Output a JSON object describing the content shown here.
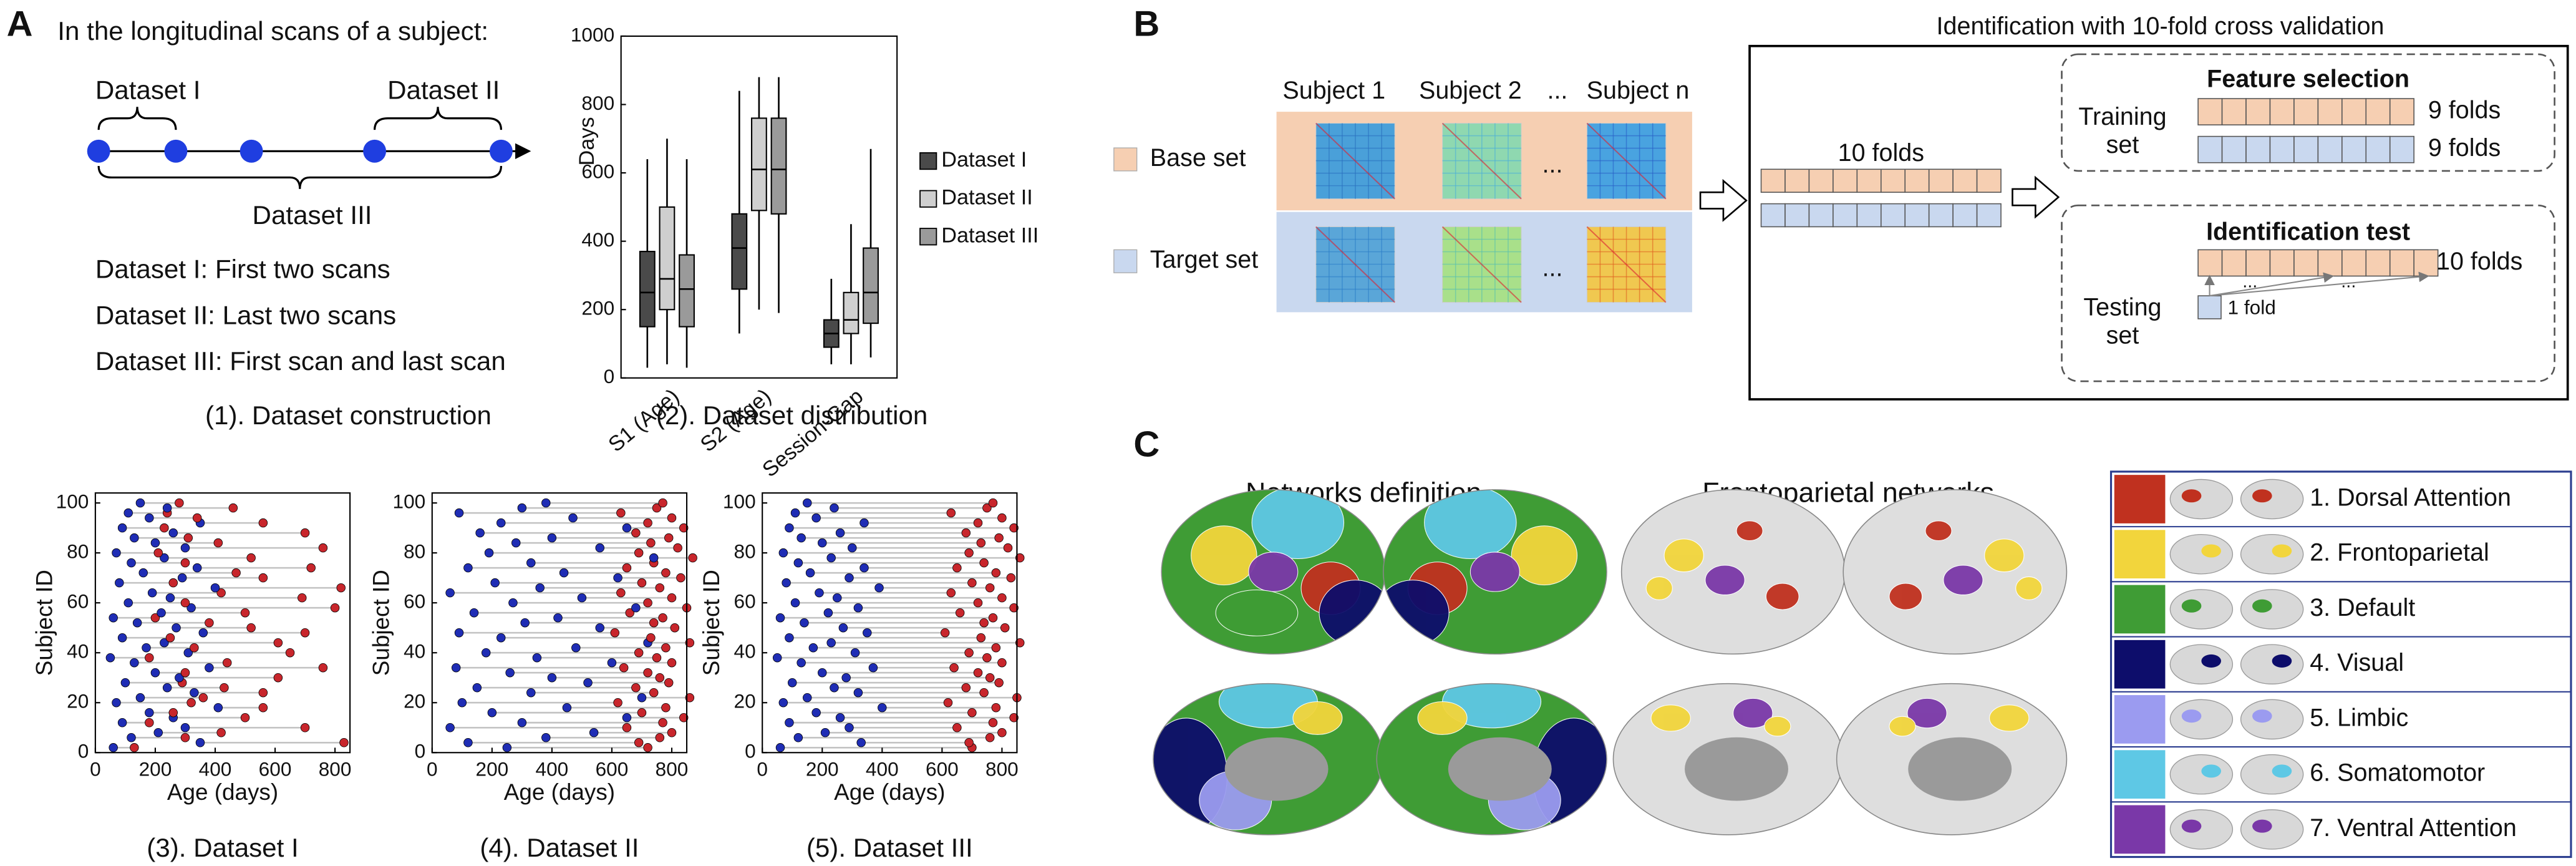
{
  "panel_labels": [
    "A",
    "B",
    "C"
  ],
  "panel_a": {
    "heading": "In the longitudinal scans of a subject:",
    "dataset_labels": [
      "Dataset I",
      "Dataset II",
      "Dataset III"
    ],
    "descriptions": [
      "Dataset I: First two scans",
      "Dataset II: Last two scans",
      "Dataset III: First scan and last scan"
    ],
    "caption": "(1). Dataset construction"
  },
  "chart_data": [
    {
      "type": "box",
      "title": "(2). Dataset distribution",
      "ylabel": "Days",
      "categories": [
        "S1 (Age)",
        "S2 (Age)",
        "Session-Gap"
      ],
      "series": [
        {
          "name": "Dataset I",
          "color": "#4a4a4a",
          "values": [
            [
              30,
              150,
              250,
              370,
              640
            ],
            [
              130,
              260,
              380,
              480,
              840
            ],
            [
              40,
              90,
              130,
              170,
              290
            ]
          ]
        },
        {
          "name": "Dataset II",
          "color": "#cfcfcf",
          "values": [
            [
              40,
              200,
              290,
              500,
              700
            ],
            [
              200,
              490,
              610,
              760,
              880
            ],
            [
              40,
              130,
              170,
              250,
              450
            ]
          ]
        },
        {
          "name": "Dataset III",
          "color": "#9a9a9a",
          "values": [
            [
              30,
              150,
              260,
              360,
              640
            ],
            [
              190,
              480,
              610,
              760,
              880
            ],
            [
              60,
              160,
              250,
              380,
              670
            ]
          ]
        }
      ],
      "ylim": [
        0,
        1000
      ],
      "yticks": [
        0,
        200,
        400,
        600,
        800,
        1000
      ],
      "legend": "right"
    },
    {
      "type": "dumbbell",
      "title": "(3). Dataset I",
      "xlabel": "Age (days)",
      "ylabel": "Subject ID",
      "start_color": "#1f2db5",
      "end_color": "#c8262c",
      "line_color": "#c4c4c4",
      "y": [
        2,
        4,
        6,
        8,
        10,
        12,
        14,
        16,
        18,
        20,
        22,
        24,
        26,
        28,
        30,
        32,
        34,
        36,
        38,
        40,
        42,
        44,
        46,
        48,
        50,
        52,
        54,
        56,
        58,
        60,
        62,
        64,
        66,
        68,
        70,
        72,
        74,
        76,
        78,
        80,
        82,
        84,
        86,
        88,
        90,
        92,
        94,
        96,
        98,
        100
      ],
      "x_start": [
        60,
        350,
        120,
        210,
        300,
        90,
        260,
        180,
        410,
        70,
        150,
        330,
        240,
        100,
        280,
        200,
        380,
        130,
        50,
        310,
        170,
        230,
        90,
        360,
        270,
        140,
        60,
        220,
        320,
        110,
        250,
        190,
        400,
        80,
        290,
        160,
        340,
        120,
        230,
        70,
        300,
        200,
        130,
        260,
        90,
        350,
        180,
        110,
        240,
        150
      ],
      "x_end": [
        130,
        830,
        300,
        420,
        700,
        180,
        500,
        260,
        560,
        320,
        360,
        560,
        430,
        290,
        610,
        300,
        760,
        440,
        180,
        650,
        330,
        610,
        250,
        700,
        520,
        380,
        200,
        500,
        800,
        300,
        690,
        420,
        820,
        260,
        560,
        470,
        720,
        300,
        520,
        210,
        760,
        410,
        310,
        700,
        230,
        560,
        340,
        240,
        460,
        280
      ],
      "xlim": [
        0,
        850
      ],
      "ylim": [
        0,
        104
      ],
      "xticks": [
        0,
        200,
        400,
        600,
        800
      ],
      "yticks": [
        0,
        20,
        40,
        60,
        80,
        100
      ]
    },
    {
      "type": "dumbbell",
      "title": "(4). Dataset II",
      "xlabel": "Age (days)",
      "ylabel": "Subject ID",
      "start_color": "#1f2db5",
      "end_color": "#c8262c",
      "line_color": "#c4c4c4",
      "y": [
        2,
        4,
        6,
        8,
        10,
        12,
        14,
        16,
        18,
        20,
        22,
        24,
        26,
        28,
        30,
        32,
        34,
        36,
        38,
        40,
        42,
        44,
        46,
        48,
        50,
        52,
        54,
        56,
        58,
        60,
        62,
        64,
        66,
        68,
        70,
        72,
        74,
        76,
        78,
        80,
        82,
        84,
        86,
        88,
        90,
        92,
        94,
        96,
        98,
        100
      ],
      "x_start": [
        250,
        120,
        380,
        540,
        60,
        300,
        650,
        200,
        450,
        100,
        700,
        330,
        150,
        520,
        400,
        260,
        80,
        600,
        350,
        180,
        480,
        720,
        230,
        90,
        560,
        310,
        420,
        140,
        680,
        270,
        500,
        60,
        360,
        210,
        620,
        440,
        120,
        330,
        740,
        190,
        560,
        280,
        400,
        160,
        650,
        230,
        470,
        90,
        300,
        380
      ],
      "x_end": [
        720,
        690,
        760,
        800,
        650,
        770,
        840,
        700,
        780,
        620,
        860,
        740,
        680,
        790,
        760,
        720,
        640,
        800,
        750,
        690,
        780,
        860,
        730,
        610,
        810,
        740,
        770,
        660,
        850,
        720,
        800,
        630,
        760,
        700,
        830,
        780,
        650,
        740,
        870,
        690,
        820,
        730,
        790,
        680,
        840,
        720,
        800,
        630,
        750,
        770
      ],
      "xlim": [
        0,
        850
      ],
      "ylim": [
        0,
        104
      ],
      "xticks": [
        0,
        200,
        400,
        600,
        800
      ],
      "yticks": [
        0,
        20,
        40,
        60,
        80,
        100
      ]
    },
    {
      "type": "dumbbell",
      "title": "(5). Dataset III",
      "xlabel": "Age (days)",
      "ylabel": "Subject ID",
      "start_color": "#1f2db5",
      "end_color": "#c8262c",
      "line_color": "#c4c4c4",
      "y": [
        2,
        4,
        6,
        8,
        10,
        12,
        14,
        16,
        18,
        20,
        22,
        24,
        26,
        28,
        30,
        32,
        34,
        36,
        38,
        40,
        42,
        44,
        46,
        48,
        50,
        52,
        54,
        56,
        58,
        60,
        62,
        64,
        66,
        68,
        70,
        72,
        74,
        76,
        78,
        80,
        82,
        84,
        86,
        88,
        90,
        92,
        94,
        96,
        98,
        100
      ],
      "x_start": [
        60,
        330,
        120,
        210,
        290,
        90,
        260,
        180,
        400,
        70,
        150,
        320,
        240,
        100,
        280,
        200,
        370,
        130,
        50,
        310,
        170,
        230,
        90,
        350,
        270,
        140,
        60,
        220,
        320,
        110,
        250,
        190,
        390,
        80,
        290,
        160,
        340,
        120,
        230,
        70,
        300,
        200,
        130,
        260,
        90,
        340,
        180,
        110,
        240,
        150
      ],
      "x_end": [
        700,
        690,
        760,
        800,
        650,
        770,
        840,
        700,
        780,
        620,
        850,
        740,
        680,
        790,
        760,
        720,
        640,
        800,
        750,
        690,
        780,
        860,
        730,
        610,
        810,
        740,
        770,
        660,
        840,
        720,
        800,
        630,
        760,
        700,
        830,
        780,
        650,
        740,
        860,
        690,
        820,
        730,
        790,
        680,
        840,
        720,
        800,
        630,
        750,
        770
      ],
      "xlim": [
        0,
        850
      ],
      "ylim": [
        0,
        104
      ],
      "xticks": [
        0,
        200,
        400,
        600,
        800
      ],
      "yticks": [
        0,
        20,
        40,
        60,
        80,
        100
      ]
    }
  ],
  "panel_b": {
    "title": "Identification with 10-fold cross validation",
    "subjects": [
      "Subject 1",
      "Subject 2",
      "Subject n"
    ],
    "ellipsis": "...",
    "sets": [
      "Base set",
      "Target set"
    ],
    "folds_label": "10 folds",
    "training": {
      "label": [
        "Training",
        "set"
      ],
      "heading": "Feature selection",
      "rows": [
        "9 folds",
        "9 folds"
      ]
    },
    "testing": {
      "label": [
        "Testing",
        "set"
      ],
      "heading": "Identification test",
      "folds": "10 folds",
      "single": "1 fold"
    }
  },
  "panel_c": {
    "headings": [
      "Networks definition",
      "Frontoparietal networks"
    ],
    "networks": [
      {
        "label": "1. Dorsal Attention",
        "color": "#c0311f"
      },
      {
        "label": "2. Frontoparietal",
        "color": "#f2d53c"
      },
      {
        "label": "3. Default",
        "color": "#3f9c35"
      },
      {
        "label": "4. Visual",
        "color": "#0d0d6b"
      },
      {
        "label": "5. Limbic",
        "color": "#9b9bf0"
      },
      {
        "label": "6. Somatomotor",
        "color": "#5ec8e5"
      },
      {
        "label": "7. Ventral Attention",
        "color": "#7a38a8"
      }
    ]
  }
}
